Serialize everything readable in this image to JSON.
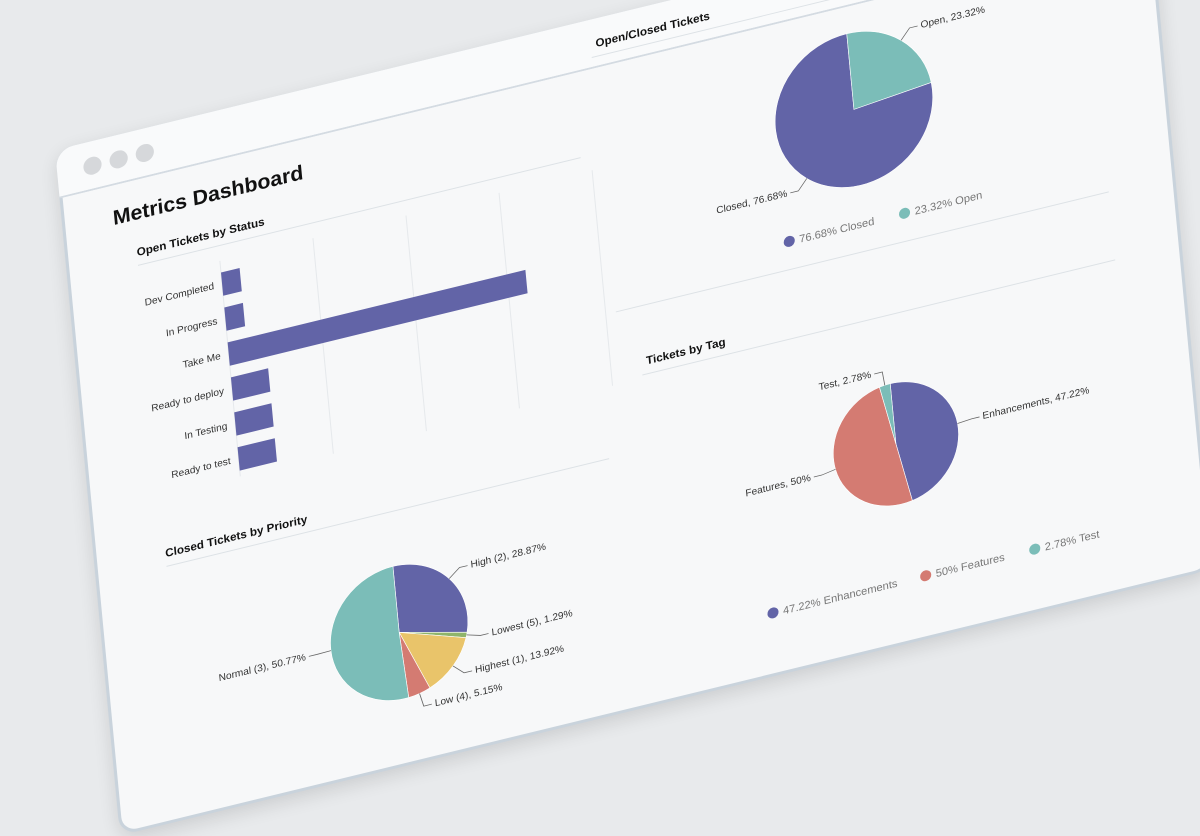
{
  "dashboard": {
    "title": "Metrics Dashboard",
    "window_controls": [
      "close-dot",
      "minimize-dot",
      "maximize-dot"
    ]
  },
  "colors": {
    "purple": "#6264a7",
    "teal": "#7bbdb8",
    "yellow": "#e9c46a",
    "salmon": "#d47b72",
    "green": "#8fb46a"
  },
  "chart_data": [
    {
      "type": "bar",
      "title": "Open Tickets by Status",
      "orientation": "horizontal",
      "categories": [
        "Dev Completed",
        "In Progress",
        "Take Me",
        "Ready to deploy",
        "In Testing",
        "Ready to test"
      ],
      "values": [
        1,
        1,
        16,
        2,
        2,
        2
      ],
      "xlim": [
        0,
        20
      ],
      "xticks": [
        "0",
        "5",
        "10",
        "15",
        "20"
      ]
    },
    {
      "type": "pie",
      "title": "Open/Closed Tickets",
      "slices": [
        {
          "name": "Closed",
          "value": 76.68,
          "label": "Closed, 76.68%",
          "legend": "76.68% Closed",
          "color": "#6264a7"
        },
        {
          "name": "Open",
          "value": 23.32,
          "label": "Open, 23.32%",
          "legend": "23.32% Open",
          "color": "#7bbdb8"
        }
      ]
    },
    {
      "type": "pie",
      "title": "Closed Tickets by Priority",
      "slices": [
        {
          "name": "High (2)",
          "value": 28.87,
          "label": "High (2), 28.87%",
          "color": "#6264a7"
        },
        {
          "name": "Lowest (5)",
          "value": 1.29,
          "label": "Lowest (5), 1.29%",
          "color": "#8fb46a"
        },
        {
          "name": "Highest (1)",
          "value": 13.92,
          "label": "Highest (1), 13.92%",
          "color": "#e9c46a"
        },
        {
          "name": "Low (4)",
          "value": 5.15,
          "label": "Low (4), 5.15%",
          "color": "#d47b72"
        },
        {
          "name": "Normal (3)",
          "value": 50.77,
          "label": "Normal (3), 50.77%",
          "color": "#7bbdb8"
        }
      ]
    },
    {
      "type": "pie",
      "title": "Tickets by Tag",
      "slices": [
        {
          "name": "Enhancements",
          "value": 47.22,
          "label": "Enhancements, 47.22%",
          "legend": "47.22% Enhancements",
          "color": "#6264a7"
        },
        {
          "name": "Features",
          "value": 50,
          "label": "Features, 50%",
          "legend": "50% Features",
          "color": "#d47b72"
        },
        {
          "name": "Test",
          "value": 2.78,
          "label": "Test, 2.78%",
          "legend": "2.78% Test",
          "color": "#7bbdb8"
        }
      ]
    }
  ]
}
